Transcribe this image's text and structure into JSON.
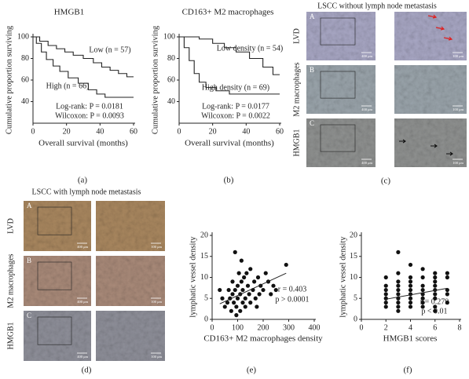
{
  "chart_data": [
    {
      "type": "line",
      "title": "HMGB1",
      "x_label": "Overall survival (months)",
      "y_label": "Cumulative proportion surviving",
      "panel_label": "(a)",
      "xlim": [
        0,
        60
      ],
      "xticks": [
        0,
        20,
        40,
        60
      ],
      "ylim": [
        20,
        100
      ],
      "yticks": [
        40,
        60,
        80,
        100
      ],
      "series": [
        {
          "name": "Low (n = 57)",
          "color": "#222",
          "x": [
            0,
            4,
            4,
            9,
            9,
            14,
            14,
            19,
            19,
            24,
            24,
            30,
            30,
            36,
            36,
            41,
            41,
            46,
            46,
            51,
            51,
            56,
            56,
            60
          ],
          "values": [
            100,
            100,
            96,
            96,
            92,
            92,
            89,
            89,
            86,
            86,
            83,
            83,
            80,
            80,
            76,
            76,
            72,
            72,
            69,
            69,
            66,
            66,
            63,
            63
          ]
        },
        {
          "name": "High (n = 66)",
          "color": "#222",
          "x": [
            0,
            2,
            2,
            5,
            5,
            8,
            8,
            12,
            12,
            16,
            16,
            21,
            21,
            27,
            27,
            33,
            33,
            38,
            38,
            43,
            43,
            60
          ],
          "values": [
            100,
            100,
            94,
            94,
            86,
            86,
            79,
            79,
            73,
            73,
            68,
            68,
            62,
            62,
            57,
            57,
            51,
            51,
            47,
            47,
            44,
            44
          ]
        }
      ],
      "annotations": [
        "Log-rank: P = 0.0181",
        "Wilcoxon: P = 0.0093"
      ]
    },
    {
      "type": "line",
      "title": "CD163+ M2 macrophages",
      "x_label": "Overall survival (months)",
      "y_label": "Cumulative proportion surviving",
      "panel_label": "(b)",
      "xlim": [
        0,
        60
      ],
      "xticks": [
        0,
        20,
        40,
        60
      ],
      "ylim": [
        20,
        100
      ],
      "yticks": [
        40,
        60,
        80,
        100
      ],
      "series": [
        {
          "name": "Low density (n = 54)",
          "color": "#222",
          "x": [
            0,
            12,
            12,
            20,
            20,
            27,
            27,
            34,
            34,
            42,
            42,
            50,
            50,
            56,
            56,
            60
          ],
          "values": [
            100,
            100,
            98,
            98,
            94,
            94,
            90,
            90,
            86,
            86,
            80,
            80,
            72,
            72,
            65,
            65
          ]
        },
        {
          "name": "High density (n = 69)",
          "color": "#222",
          "x": [
            0,
            3,
            3,
            6,
            6,
            9,
            9,
            12,
            12,
            16,
            16,
            22,
            22,
            30,
            30,
            60
          ],
          "values": [
            100,
            100,
            90,
            90,
            78,
            78,
            66,
            66,
            58,
            58,
            53,
            53,
            50,
            50,
            47,
            47
          ]
        }
      ],
      "annotations": [
        "Log-rank: P = 0.0177",
        "Wilcoxon: P = 0.0022"
      ]
    },
    {
      "type": "scatter",
      "x_label": "CD163+ M2 macrophages density",
      "y_label": "lymphatic vessel density",
      "panel_label": "(e)",
      "xlim": [
        0,
        400
      ],
      "xticks": [
        0,
        100,
        200,
        300,
        400
      ],
      "ylim": [
        0,
        20
      ],
      "yticks": [
        0,
        5,
        10,
        15,
        20
      ],
      "color": "#111",
      "x": [
        50,
        60,
        65,
        70,
        75,
        80,
        80,
        85,
        90,
        90,
        95,
        100,
        100,
        105,
        110,
        110,
        115,
        120,
        120,
        125,
        130,
        130,
        140,
        145,
        150,
        150,
        160,
        165,
        170,
        180,
        185,
        190,
        200,
        210,
        220,
        230,
        240,
        250,
        290,
        30,
        40,
        95,
        135,
        175,
        115
      ],
      "values": [
        3,
        4,
        7,
        5,
        2,
        6,
        9,
        4,
        16,
        7,
        3,
        5,
        8,
        11,
        6,
        2,
        9,
        4,
        7,
        10,
        5,
        3,
        8,
        6,
        12,
        4,
        7,
        9,
        5,
        10,
        6,
        8,
        7,
        11,
        9,
        6,
        8,
        7,
        13,
        7,
        5,
        1,
        11,
        3,
        14
      ],
      "fit_line": {
        "x": [
          30,
          290
        ],
        "y": [
          3.7,
          11
        ]
      },
      "annotations": [
        "r = 0.403",
        "p > 0.0001"
      ]
    },
    {
      "type": "scatter",
      "x_label": "HMGB1 scores",
      "y_label": "lymphatic vessel density",
      "panel_label": "(f)",
      "xlim": [
        0,
        8
      ],
      "xticks": [
        0,
        2,
        4,
        6,
        8
      ],
      "ylim": [
        0,
        20
      ],
      "yticks": [
        0,
        5,
        10,
        15,
        20
      ],
      "color": "#111",
      "x": [
        2,
        2,
        2,
        2,
        2,
        2,
        2,
        3,
        3,
        3,
        3,
        3,
        3,
        3,
        3,
        3,
        3,
        4,
        4,
        4,
        4,
        4,
        4,
        4,
        4,
        4,
        5,
        5,
        5,
        5,
        5,
        5,
        5,
        5,
        6,
        6,
        6,
        6,
        6,
        6,
        6,
        6,
        6,
        7,
        7,
        7,
        7,
        7
      ],
      "values": [
        3,
        4,
        5,
        6,
        7,
        8,
        10,
        2,
        3,
        4,
        5,
        6,
        7,
        8,
        9,
        11,
        16,
        3,
        4,
        5,
        6,
        7,
        8,
        9,
        10,
        13,
        3,
        4,
        5,
        6,
        7,
        8,
        10,
        12,
        2,
        3,
        5,
        6,
        7,
        8,
        9,
        10,
        11,
        4,
        6,
        7,
        10,
        11
      ],
      "fit_line": {
        "x": [
          2,
          7
        ],
        "y": [
          4.8,
          7.4
        ]
      },
      "annotations": [
        "r = 0.279",
        "p < 0.01"
      ]
    }
  ],
  "panel_c": {
    "title": "LSCC without lymph node metastasis",
    "panel_label": "(c)",
    "rows": [
      {
        "label": "LVD",
        "letter": "A",
        "scale_bars": [
          "400 μm",
          "100 μm"
        ]
      },
      {
        "label": "M2 macrophages",
        "letter": "B",
        "scale_bars": [
          "400 μm",
          "100 μm"
        ]
      },
      {
        "label": "HMGB1",
        "letter": "C",
        "scale_bars": [
          "400 μm",
          "100 μm"
        ]
      }
    ]
  },
  "panel_d": {
    "title": "LSCC with lymph node metastasis",
    "panel_label": "(d)",
    "rows": [
      {
        "label": "LVD",
        "letter": "A",
        "scale_bars": [
          "400 μm",
          "100 μm"
        ]
      },
      {
        "label": "M2 macrophages",
        "letter": "B",
        "scale_bars": [
          "400 μm",
          "100 μm"
        ]
      },
      {
        "label": "HMGB1",
        "letter": "C",
        "scale_bars": [
          "400 μm",
          "100 μm"
        ]
      }
    ]
  }
}
